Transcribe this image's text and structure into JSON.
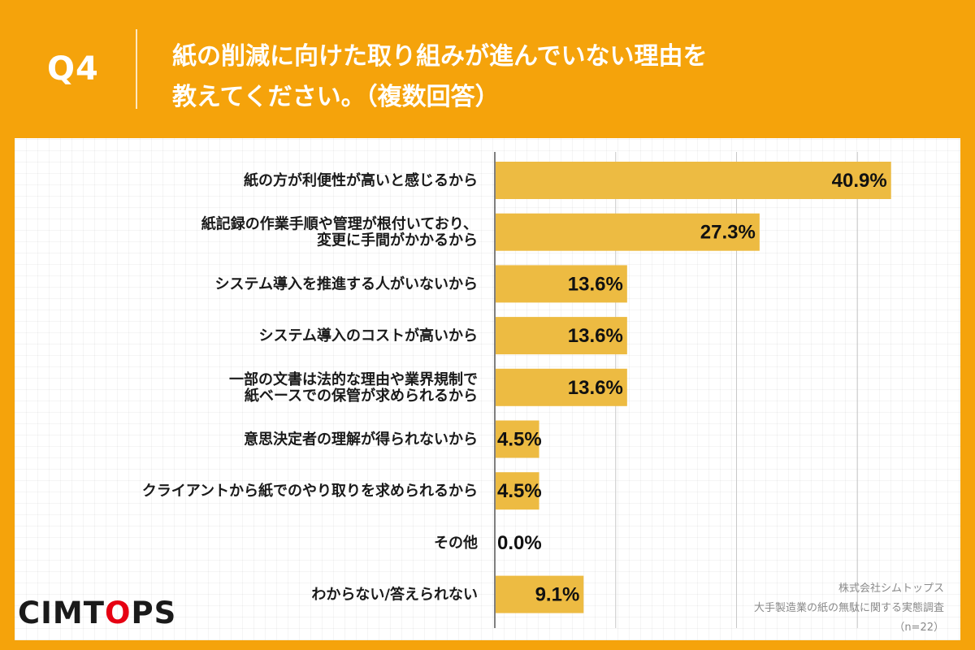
{
  "header": {
    "question_label": "Q4",
    "title_line_1": "紙の削減に向けた取り組みが進んでいない理由を",
    "title_line_2": "教えてください。（複数回答）"
  },
  "chart_data": {
    "type": "bar",
    "orientation": "horizontal",
    "categories": [
      [
        "紙の方が利便性が高いと感じるから"
      ],
      [
        "紙記録の作業手順や管理が根付いており、",
        "変更に手間がかかるから"
      ],
      [
        "システム導入を推進する人がいないから"
      ],
      [
        "システム導入のコストが高いから"
      ],
      [
        "一部の文書は法的な理由や業界規制で",
        "紙ベースでの保管が求められるから"
      ],
      [
        "意思決定者の理解が得られないから"
      ],
      [
        "クライアントから紙でのやり取りを求められるから"
      ],
      [
        "その他"
      ],
      [
        "わからない/答えられない"
      ]
    ],
    "values": [
      40.9,
      27.3,
      13.6,
      13.6,
      13.6,
      4.5,
      4.5,
      0.0,
      9.1
    ],
    "value_labels": [
      "40.9%",
      "27.3%",
      "13.6%",
      "13.6%",
      "13.6%",
      "4.5%",
      "4.5%",
      "0.0%",
      "9.1%"
    ],
    "xlim": [
      0,
      50
    ],
    "gridlines": [
      0,
      12.5,
      25,
      37.5,
      50
    ],
    "grid": true,
    "bar_color": "#EDBB42"
  },
  "colors": {
    "background": "#F5A30B",
    "panel": "#FFFFFF",
    "bar": "#EDBB42",
    "logo_accent": "#E60012"
  },
  "footer": {
    "logo_before": "CIMT",
    "logo_o": "O",
    "logo_after": "PS",
    "company": "株式会社シムトップス",
    "survey": "大手製造業の紙の無駄に関する実態調査",
    "sample": "（n=22）"
  }
}
